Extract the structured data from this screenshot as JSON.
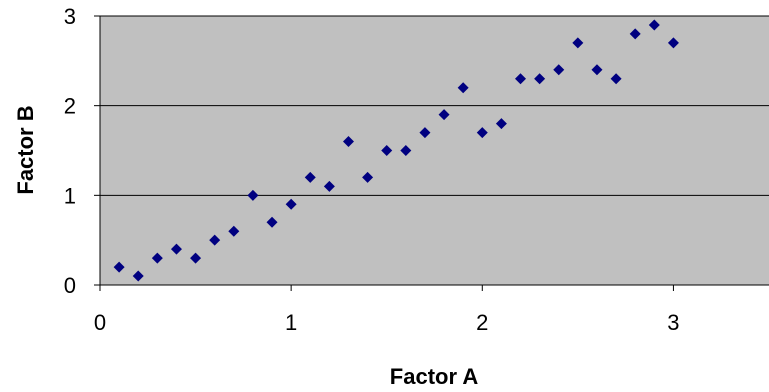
{
  "chart_data": {
    "type": "scatter",
    "xlabel": "Factor A",
    "ylabel": "Factor B",
    "xlim": [
      0,
      3.5
    ],
    "ylim": [
      0,
      3
    ],
    "x_ticks": [
      "0",
      "1",
      "2",
      "3"
    ],
    "y_ticks": [
      "0",
      "1",
      "2",
      "3"
    ],
    "grid": "horizontal major gridlines",
    "plot_background": "#C0C0C0",
    "marker": "diamond",
    "marker_color": "#000080",
    "legend": "none",
    "series": [
      {
        "points": [
          [
            0.1,
            0.2
          ],
          [
            0.2,
            0.1
          ],
          [
            0.3,
            0.3
          ],
          [
            0.4,
            0.4
          ],
          [
            0.5,
            0.3
          ],
          [
            0.6,
            0.5
          ],
          [
            0.7,
            0.6
          ],
          [
            0.8,
            1.0
          ],
          [
            0.9,
            0.7
          ],
          [
            1.0,
            0.9
          ],
          [
            1.1,
            1.2
          ],
          [
            1.2,
            1.1
          ],
          [
            1.3,
            1.6
          ],
          [
            1.4,
            1.2
          ],
          [
            1.5,
            1.5
          ],
          [
            1.6,
            1.5
          ],
          [
            1.7,
            1.7
          ],
          [
            1.8,
            1.9
          ],
          [
            1.9,
            2.2
          ],
          [
            2.0,
            1.7
          ],
          [
            2.1,
            1.8
          ],
          [
            2.2,
            2.3
          ],
          [
            2.3,
            2.3
          ],
          [
            2.4,
            2.4
          ],
          [
            2.5,
            2.7
          ],
          [
            2.6,
            2.4
          ],
          [
            2.7,
            2.3
          ],
          [
            2.8,
            2.8
          ],
          [
            2.9,
            2.9
          ],
          [
            3.0,
            2.7
          ]
        ]
      }
    ]
  }
}
